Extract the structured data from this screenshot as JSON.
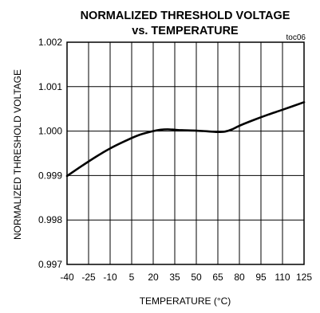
{
  "chart_data": {
    "type": "line",
    "title": "NORMALIZED THRESHOLD VOLTAGE",
    "subtitle": "vs. TEMPERATURE",
    "tag": "toc06",
    "xlabel": "TEMPERATURE (°C)",
    "ylabel": "NORMALIZED THRESHOLD VOLTAGE",
    "xlim": [
      -40,
      125
    ],
    "ylim": [
      0.997,
      1.002
    ],
    "xticks": [
      -40,
      -25,
      -10,
      5,
      20,
      35,
      50,
      65,
      80,
      95,
      110,
      125
    ],
    "xtick_labels": [
      "-40",
      "-25",
      "-10",
      "5",
      "20",
      "35",
      "50",
      "65",
      "80",
      "95",
      "110",
      "125"
    ],
    "yticks": [
      0.997,
      0.998,
      0.999,
      1.0,
      1.001,
      1.002
    ],
    "ytick_labels": [
      "0.997",
      "0.998",
      "0.999",
      "1.000",
      "1.001",
      "1.002"
    ],
    "grid": true,
    "legend": false,
    "series": [
      {
        "color": "#000000",
        "x": [
          -40,
          -30,
          -20,
          -10,
          0,
          10,
          20,
          25,
          30,
          35,
          40,
          50,
          60,
          65,
          70,
          75,
          80,
          90,
          100,
          110,
          125
        ],
        "y": [
          0.99899,
          0.99921,
          0.99942,
          0.99961,
          0.99977,
          0.99991,
          1.0,
          1.00003,
          1.00004,
          1.00003,
          1.00002,
          1.00001,
          0.99999,
          0.99998,
          0.99999,
          1.00004,
          1.00012,
          1.00025,
          1.00037,
          1.00048,
          1.00065
        ]
      }
    ]
  }
}
